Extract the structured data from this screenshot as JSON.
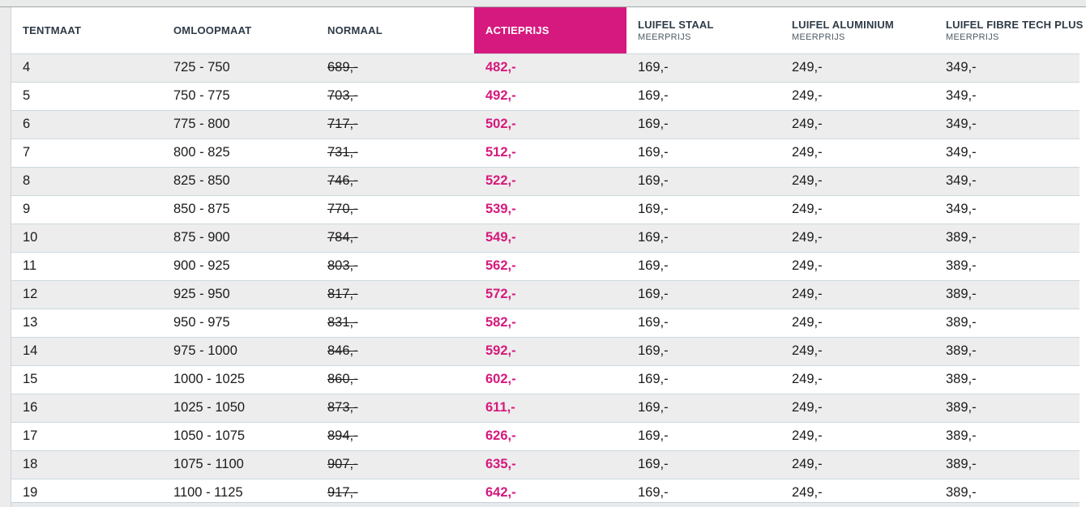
{
  "colors": {
    "accent_pink": "#d6197f",
    "action_price_text": "#d6197c",
    "header_text": "#2e3b47",
    "header_sub_text": "#4d5a63",
    "body_text": "#1b1b1b",
    "row_shade": "#ededed",
    "row_separator": "#ccd8dd",
    "page_gutter": "#ececec"
  },
  "table": {
    "columns": [
      {
        "field": "tentmaat",
        "label": "TENTMAAT",
        "sub": ""
      },
      {
        "field": "omloopmaat",
        "label": "OMLOOPMAAT",
        "sub": ""
      },
      {
        "field": "normaal",
        "label": "NORMAAL",
        "sub": ""
      },
      {
        "field": "actieprijs",
        "label": "ACTIEPRIJS",
        "sub": "",
        "highlight": true
      },
      {
        "field": "luifel_staal",
        "label": "LUIFEL STAAL",
        "sub": "MEERPRIJS"
      },
      {
        "field": "luifel_aluminium",
        "label": "LUIFEL ALUMINIUM",
        "sub": "MEERPRIJS"
      },
      {
        "field": "luifel_fibre_tech_plus",
        "label": "LUIFEL FIBRE TECH PLUS",
        "sub": "MEERPRIJS"
      }
    ],
    "rows": [
      {
        "tentmaat": "4",
        "omloopmaat": "725 - 750",
        "normaal": "689,-",
        "actieprijs": "482,-",
        "luifel_staal": "169,-",
        "luifel_aluminium": "249,-",
        "luifel_fibre_tech_plus": "349,-"
      },
      {
        "tentmaat": "5",
        "omloopmaat": "750 - 775",
        "normaal": "703,-",
        "actieprijs": "492,-",
        "luifel_staal": "169,-",
        "luifel_aluminium": "249,-",
        "luifel_fibre_tech_plus": "349,-"
      },
      {
        "tentmaat": "6",
        "omloopmaat": "775 - 800",
        "normaal": "717,-",
        "actieprijs": "502,-",
        "luifel_staal": "169,-",
        "luifel_aluminium": "249,-",
        "luifel_fibre_tech_plus": "349,-"
      },
      {
        "tentmaat": "7",
        "omloopmaat": "800 - 825",
        "normaal": "731,-",
        "actieprijs": "512,-",
        "luifel_staal": "169,-",
        "luifel_aluminium": "249,-",
        "luifel_fibre_tech_plus": "349,-"
      },
      {
        "tentmaat": "8",
        "omloopmaat": "825 - 850",
        "normaal": "746,-",
        "actieprijs": "522,-",
        "luifel_staal": "169,-",
        "luifel_aluminium": "249,-",
        "luifel_fibre_tech_plus": "349,-"
      },
      {
        "tentmaat": "9",
        "omloopmaat": "850 - 875",
        "normaal": "770,-",
        "actieprijs": "539,-",
        "luifel_staal": "169,-",
        "luifel_aluminium": "249,-",
        "luifel_fibre_tech_plus": "349,-"
      },
      {
        "tentmaat": "10",
        "omloopmaat": "875 - 900",
        "normaal": "784,-",
        "actieprijs": "549,-",
        "luifel_staal": "169,-",
        "luifel_aluminium": "249,-",
        "luifel_fibre_tech_plus": "389,-"
      },
      {
        "tentmaat": "11",
        "omloopmaat": "900 - 925",
        "normaal": "803,-",
        "actieprijs": "562,-",
        "luifel_staal": "169,-",
        "luifel_aluminium": "249,-",
        "luifel_fibre_tech_plus": "389,-"
      },
      {
        "tentmaat": "12",
        "omloopmaat": "925 - 950",
        "normaal": "817,-",
        "actieprijs": "572,-",
        "luifel_staal": "169,-",
        "luifel_aluminium": "249,-",
        "luifel_fibre_tech_plus": "389,-"
      },
      {
        "tentmaat": "13",
        "omloopmaat": "950 - 975",
        "normaal": "831,-",
        "actieprijs": "582,-",
        "luifel_staal": "169,-",
        "luifel_aluminium": "249,-",
        "luifel_fibre_tech_plus": "389,-"
      },
      {
        "tentmaat": "14",
        "omloopmaat": "975 - 1000",
        "normaal": "846,-",
        "actieprijs": "592,-",
        "luifel_staal": "169,-",
        "luifel_aluminium": "249,-",
        "luifel_fibre_tech_plus": "389,-"
      },
      {
        "tentmaat": "15",
        "omloopmaat": "1000 - 1025",
        "normaal": "860,-",
        "actieprijs": "602,-",
        "luifel_staal": "169,-",
        "luifel_aluminium": "249,-",
        "luifel_fibre_tech_plus": "389,-"
      },
      {
        "tentmaat": "16",
        "omloopmaat": "1025 - 1050",
        "normaal": "873,-",
        "actieprijs": "611,-",
        "luifel_staal": "169,-",
        "luifel_aluminium": "249,-",
        "luifel_fibre_tech_plus": "389,-"
      },
      {
        "tentmaat": "17",
        "omloopmaat": "1050 - 1075",
        "normaal": "894,-",
        "actieprijs": "626,-",
        "luifel_staal": "169,-",
        "luifel_aluminium": "249,-",
        "luifel_fibre_tech_plus": "389,-"
      },
      {
        "tentmaat": "18",
        "omloopmaat": "1075 - 1100",
        "normaal": "907,-",
        "actieprijs": "635,-",
        "luifel_staal": "169,-",
        "luifel_aluminium": "249,-",
        "luifel_fibre_tech_plus": "389,-"
      },
      {
        "tentmaat": "19",
        "omloopmaat": "1100 - 1125",
        "normaal": "917,-",
        "actieprijs": "642,-",
        "luifel_staal": "169,-",
        "luifel_aluminium": "249,-",
        "luifel_fibre_tech_plus": "389,-"
      }
    ]
  }
}
